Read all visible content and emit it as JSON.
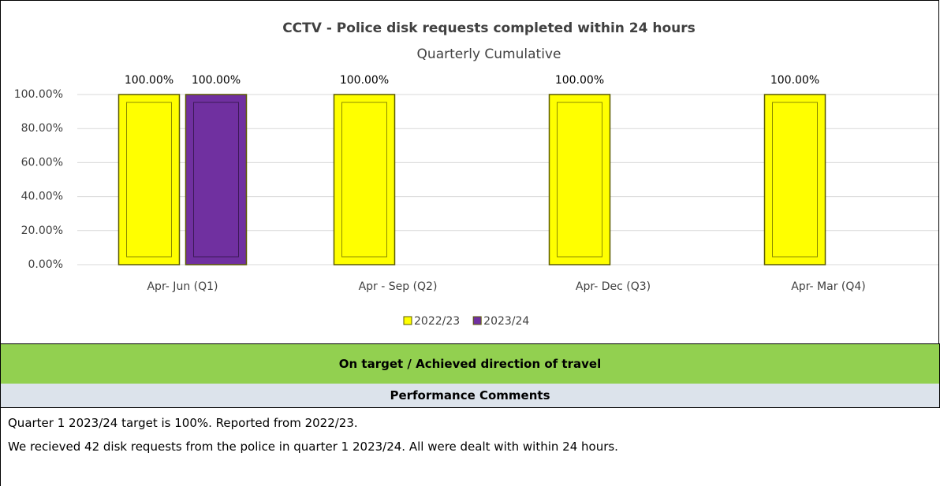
{
  "chart_data": {
    "type": "bar",
    "title": "CCTV - Police disk requests completed within 24 hours",
    "subtitle": "Quarterly Cumulative",
    "categories": [
      "Apr- Jun  (Q1)",
      "Apr - Sep  (Q2)",
      "Apr- Dec  (Q3)",
      "Apr- Mar  (Q4)"
    ],
    "series": [
      {
        "name": "2022/23",
        "color": "#ffff00",
        "values": [
          100,
          100,
          100,
          100
        ],
        "value_labels": [
          "100.00%",
          "100.00%",
          "100.00%",
          "100.00%"
        ]
      },
      {
        "name": "2023/24",
        "color": "#7030a0",
        "values": [
          100,
          null,
          null,
          null
        ],
        "value_labels": [
          "100.00%",
          null,
          null,
          null
        ]
      }
    ],
    "ylim": [
      0,
      100
    ],
    "yticks": [
      {
        "value": 0,
        "label": "0.00%"
      },
      {
        "value": 20,
        "label": "20.00%"
      },
      {
        "value": 40,
        "label": "40.00%"
      },
      {
        "value": 60,
        "label": "60.00%"
      },
      {
        "value": 80,
        "label": "80.00%"
      },
      {
        "value": 100,
        "label": "100.00%"
      }
    ],
    "grid": true,
    "legend": "bottom"
  },
  "status": "On target / Achieved direction of travel",
  "comments": {
    "heading": "Performance Comments",
    "lines": [
      "Quarter 1 2023/24 target is 100%. Reported from 2022/23.",
      "We recieved 42 disk requests from the police in quarter 1 2023/24.  All were dealt with within 24 hours."
    ]
  }
}
